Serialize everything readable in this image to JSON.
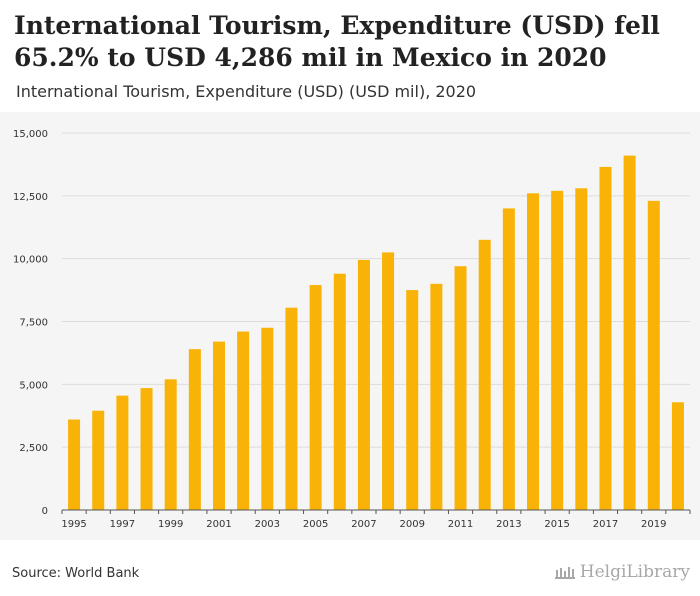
{
  "header": {
    "headline": "International Tourism, Expenditure (USD) fell 65.2% to USD 4,286 mil in Mexico in 2020",
    "subtitle": "International Tourism, Expenditure (USD) (USD mil), 2020"
  },
  "footer": {
    "source": "Source: World Bank",
    "brand": "HelgiLibrary"
  },
  "colors": {
    "bar": "#F9B307",
    "grid": "#dddddd",
    "panel": "#f5f5f5"
  },
  "chart_data": {
    "type": "bar",
    "title": "International Tourism, Expenditure (USD) fell 65.2% to USD 4,286 mil in Mexico in 2020",
    "subtitle": "International Tourism, Expenditure (USD) (USD mil), 2020",
    "xlabel": "",
    "ylabel": "",
    "ylim": [
      0,
      15000
    ],
    "yticks": [
      0,
      2500,
      5000,
      7500,
      10000,
      12500,
      15000
    ],
    "ytick_labels": [
      "0",
      "2,500",
      "5,000",
      "7,500",
      "10,000",
      "12,500",
      "15,000"
    ],
    "categories": [
      "1995",
      "1996",
      "1997",
      "1998",
      "1999",
      "2000",
      "2001",
      "2002",
      "2003",
      "2004",
      "2005",
      "2006",
      "2007",
      "2008",
      "2009",
      "2010",
      "2011",
      "2012",
      "2013",
      "2014",
      "2015",
      "2016",
      "2017",
      "2018",
      "2019",
      "2020"
    ],
    "xtick_labels": [
      "1995",
      "1997",
      "1999",
      "2001",
      "2003",
      "2005",
      "2007",
      "2009",
      "2011",
      "2013",
      "2015",
      "2017",
      "2019"
    ],
    "values": [
      3600,
      3950,
      4550,
      4850,
      5200,
      6400,
      6700,
      7100,
      7250,
      8050,
      8950,
      9400,
      9950,
      10250,
      8750,
      9000,
      9700,
      10750,
      12000,
      12600,
      12700,
      12800,
      13650,
      14100,
      12300,
      4286
    ],
    "grid": true,
    "legend": "none"
  }
}
